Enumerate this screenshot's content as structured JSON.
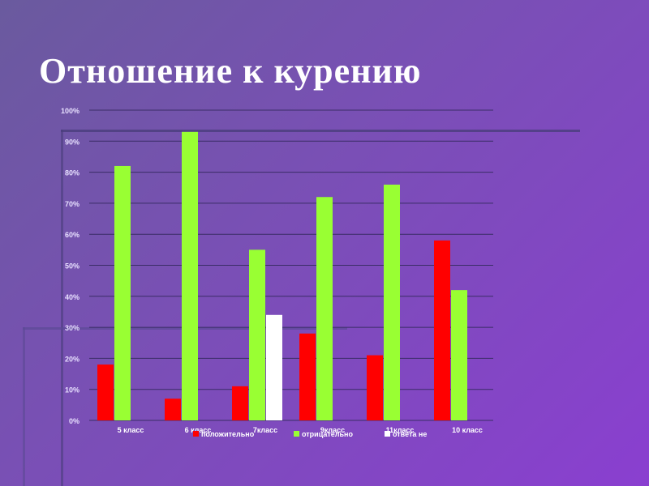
{
  "title": "Отношение к курению",
  "chart_data": {
    "type": "bar",
    "categories": [
      "5 класс",
      "6 класс",
      "7класс",
      "9класс",
      "11класс",
      "10 класс"
    ],
    "series": [
      {
        "name": "положительно",
        "color": "#ff0000",
        "values": [
          18,
          7,
          11,
          28,
          21,
          58
        ]
      },
      {
        "name": "отрицательно",
        "color": "#99ff33",
        "values": [
          82,
          93,
          55,
          72,
          76,
          42
        ]
      },
      {
        "name": "ответа не",
        "color": "#ffffff",
        "values": [
          null,
          null,
          34,
          null,
          null,
          null
        ]
      }
    ],
    "yticks": [
      "0%",
      "10%",
      "20%",
      "30%",
      "40%",
      "50%",
      "60%",
      "70%",
      "80%",
      "90%",
      "100%"
    ],
    "ylim": [
      0,
      100
    ],
    "grid": true,
    "legend_position": "bottom"
  }
}
